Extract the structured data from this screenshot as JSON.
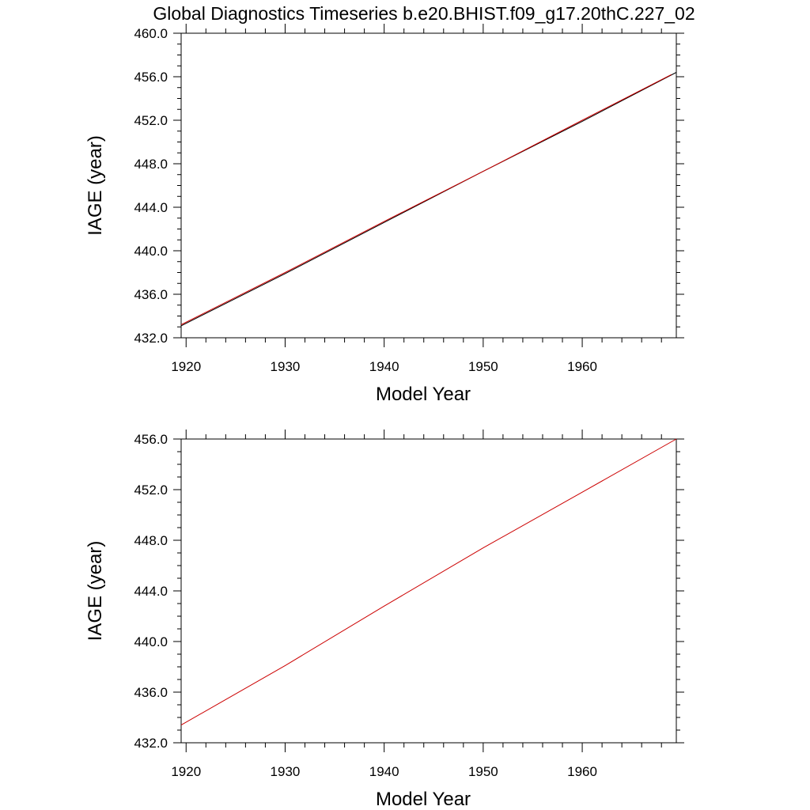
{
  "title": "Global Diagnostics Timeseries b.e20.BHIST.f09_g17.20thC.227_02",
  "colors": {
    "series_red": "#cc0000",
    "series_black": "#000000",
    "axis": "#000000"
  },
  "chart_data": [
    {
      "type": "line",
      "xlabel": "Model Year",
      "ylabel": "IAGE (year)",
      "xlim": [
        1919.5,
        1969.5
      ],
      "ylim": [
        432,
        460
      ],
      "x_ticks": [
        1920,
        1930,
        1940,
        1950,
        1960
      ],
      "x_tick_labels": [
        "1920",
        "1930",
        "1940",
        "1950",
        "1960"
      ],
      "y_ticks": [
        432,
        436,
        440,
        444,
        448,
        452,
        456,
        460
      ],
      "y_tick_labels": [
        "432.0",
        "436.0",
        "440.0",
        "444.0",
        "448.0",
        "452.0",
        "456.0",
        "460.0"
      ],
      "grid": false,
      "series": [
        {
          "color": "#000000",
          "x": [
            1919.5,
            1930,
            1940,
            1950,
            1960,
            1969.5
          ],
          "values": [
            433.1,
            437.9,
            442.6,
            447.3,
            451.9,
            456.4
          ]
        },
        {
          "color": "#cc0000",
          "x": [
            1919.5,
            1930,
            1940,
            1950,
            1960,
            1969
          ],
          "values": [
            433.2,
            438.0,
            442.7,
            447.3,
            452.0,
            456.2
          ]
        }
      ]
    },
    {
      "type": "line",
      "xlabel": "Model Year",
      "ylabel": "IAGE (year)",
      "xlim": [
        1919.5,
        1969.5
      ],
      "ylim": [
        432,
        456
      ],
      "x_ticks": [
        1920,
        1930,
        1940,
        1950,
        1960
      ],
      "x_tick_labels": [
        "1920",
        "1930",
        "1940",
        "1950",
        "1960"
      ],
      "y_ticks": [
        432,
        436,
        440,
        444,
        448,
        452,
        456
      ],
      "y_tick_labels": [
        "432.0",
        "436.0",
        "440.0",
        "444.0",
        "448.0",
        "452.0",
        "456.0"
      ],
      "grid": false,
      "series": [
        {
          "color": "#cc0000",
          "x": [
            1919.5,
            1930,
            1940,
            1950,
            1960,
            1969.5
          ],
          "values": [
            433.4,
            438.1,
            442.8,
            447.4,
            451.8,
            456.0
          ]
        }
      ]
    }
  ]
}
